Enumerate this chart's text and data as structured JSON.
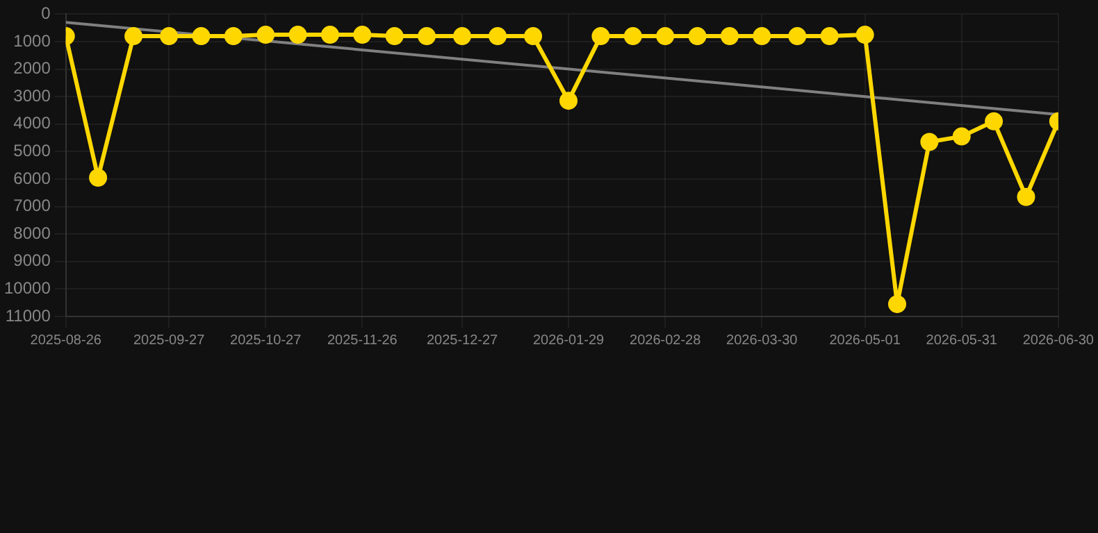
{
  "chart_data": {
    "type": "line",
    "x": [
      "2025-08-26",
      "2025-09-05",
      "2025-09-16",
      "2025-09-27",
      "2025-10-07",
      "2025-10-17",
      "2025-10-27",
      "2025-11-06",
      "2025-11-16",
      "2025-11-26",
      "2025-12-06",
      "2025-12-16",
      "2025-12-27",
      "2026-01-07",
      "2026-01-18",
      "2026-01-29",
      "2026-02-08",
      "2026-02-18",
      "2026-02-28",
      "2026-03-10",
      "2026-03-20",
      "2026-03-30",
      "2026-04-10",
      "2026-04-20",
      "2026-05-01",
      "2026-05-11",
      "2026-05-21",
      "2026-05-31",
      "2026-06-10",
      "2026-06-20",
      "2026-06-30"
    ],
    "series": [
      {
        "color": "#ffd700",
        "marker": "circle",
        "values": [
          800,
          5950,
          800,
          800,
          800,
          800,
          750,
          750,
          750,
          750,
          800,
          800,
          800,
          800,
          800,
          3150,
          800,
          800,
          800,
          800,
          800,
          800,
          800,
          800,
          750,
          10550,
          4650,
          4450,
          3900,
          6650,
          3900
        ]
      },
      {
        "type": "line",
        "color": "#808080",
        "marker": "none",
        "x": [
          "2025-08-26",
          "2026-06-30"
        ],
        "values": [
          300,
          3650
        ]
      }
    ],
    "ylim": [
      11000,
      0
    ],
    "yticks": [
      0,
      1000,
      2000,
      3000,
      4000,
      5000,
      6000,
      7000,
      8000,
      9000,
      10000,
      11000
    ],
    "xlim": [
      "2025-08-26",
      "2026-06-30"
    ],
    "xticks": [
      "2025-08-26",
      "2025-09-27",
      "2025-10-27",
      "2025-11-26",
      "2025-12-27",
      "2026-01-29",
      "2026-02-28",
      "2026-03-30",
      "2026-05-01",
      "2026-05-31",
      "2026-06-30"
    ],
    "grid": true,
    "legend": false
  }
}
